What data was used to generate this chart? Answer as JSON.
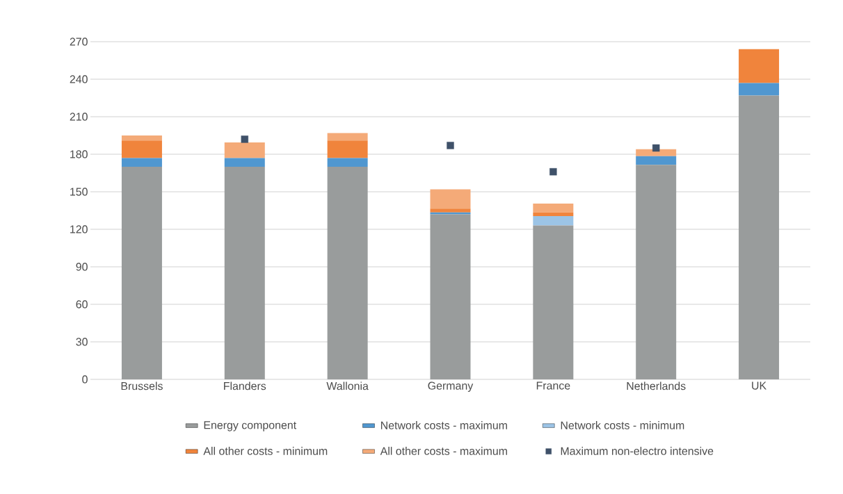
{
  "chart_data": {
    "type": "bar",
    "stacked": true,
    "categories": [
      "Brussels",
      "Flanders",
      "Wallonia",
      "Germany",
      "France",
      "Netherlands",
      "UK"
    ],
    "series": [
      {
        "name": "Energy component",
        "color": "#999c9c",
        "values": [
          170,
          170,
          170,
          132,
          123,
          171.5,
          227
        ]
      },
      {
        "name": "Network costs - maximum",
        "color": "#5097d0",
        "values": [
          7,
          7,
          7,
          1.5,
          0,
          7,
          10
        ]
      },
      {
        "name": "Network costs - minimum",
        "color": "#9cc4e6",
        "values": [
          0,
          0,
          0,
          0,
          7.5,
          0,
          0
        ]
      },
      {
        "name": "All other costs - minimum",
        "color": "#f0843c",
        "values": [
          14,
          0,
          14,
          3,
          3,
          0,
          27
        ]
      },
      {
        "name": "All other costs - maximum",
        "color": "#f4aa78",
        "values": [
          4,
          12.5,
          6,
          15.5,
          7,
          5.5,
          0
        ]
      },
      {
        "name": "Maximum non-electro intensive",
        "type": "scatter",
        "marker": "square",
        "color": "#3f5169",
        "values": [
          null,
          192,
          null,
          187,
          166,
          185,
          null
        ]
      }
    ],
    "ylim": [
      0,
      270
    ],
    "yticks": [
      0,
      30,
      60,
      90,
      120,
      150,
      180,
      210,
      240,
      270
    ],
    "grid": "y",
    "legend": "bottom"
  }
}
